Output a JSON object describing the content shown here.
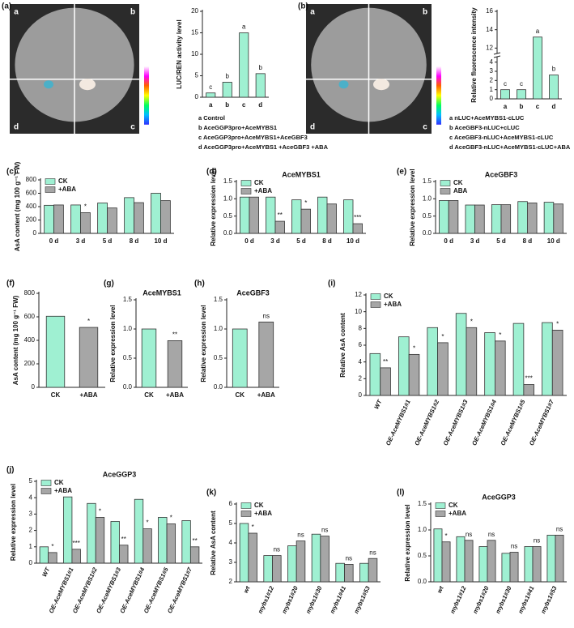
{
  "chart_data": [
    {
      "type": "image",
      "panel": "(a)",
      "quadrants": [
        "a",
        "b",
        "d",
        "c"
      ]
    },
    {
      "type": "bar",
      "ylabel": "LUC/REN activity level",
      "categories": [
        "a",
        "b",
        "c",
        "d"
      ],
      "values": [
        1,
        3.5,
        15,
        5.5
      ],
      "colors": [
        "#9ff0d2",
        "#9ff0d2",
        "#9ff0d2",
        "#9ff0d2"
      ],
      "sig": [
        "c",
        "b",
        "a",
        "b"
      ],
      "ylim": [
        0,
        20
      ],
      "yticks": [
        0,
        5,
        10,
        15,
        20
      ],
      "key": [
        "a  Control",
        "b  AceGGP3pro+AceMYBS1",
        "c  AceGGP3pro+AceMYBS1+AceGBF3",
        "d  AceGGP3pro+AceMYBS1 +AceGBF3 +ABA"
      ]
    },
    {
      "type": "image",
      "panel": "(b)",
      "quadrants": [
        "a",
        "b",
        "d",
        "c"
      ]
    },
    {
      "type": "bar",
      "ylabel": "Relative fluorescence intensity",
      "categories": [
        "a",
        "b",
        "c",
        "d"
      ],
      "values": [
        1,
        1,
        13.2,
        2.6
      ],
      "colors": [
        "#9ff0d2",
        "#9ff0d2",
        "#9ff0d2",
        "#9ff0d2"
      ],
      "sig": [
        "c",
        "c",
        "a",
        "b"
      ],
      "ylim": [
        0,
        16
      ],
      "ybreak": [
        4.5,
        11.5
      ],
      "yticks": [
        0,
        1,
        2,
        3,
        4,
        12,
        14,
        16
      ],
      "key": [
        "a  nLUC+AceMYBS1-cLUC",
        "b  AceGBF3-nLUC+cLUC",
        "c  AceGBF3-nLUC+AceMYBS1-cLUC",
        "d  AceGBF3-nLUC+AceMYBS1-cLUC+ABA"
      ]
    },
    {
      "type": "bar",
      "panel": "(c)",
      "ylabel": "AsA content (mg 100 g⁻¹ FW)",
      "categories": [
        "0 d",
        "3 d",
        "5 d",
        "8 d",
        "10 d"
      ],
      "legend": "upper left",
      "series": [
        {
          "name": "CK",
          "color": "#9ff0d2",
          "values": [
            420,
            425,
            455,
            535,
            600
          ],
          "sig": [
            null,
            null,
            null,
            null,
            null
          ]
        },
        {
          "name": "+ABA",
          "color": "#a6a6a6",
          "values": [
            425,
            310,
            380,
            460,
            490
          ],
          "sig": [
            null,
            "*",
            null,
            null,
            null
          ]
        }
      ],
      "ylim": [
        0,
        800
      ],
      "yticks": [
        0,
        200,
        400,
        600,
        800
      ]
    },
    {
      "type": "bar",
      "panel": "(d)",
      "title": "AceMYBS1",
      "ylabel": "Relative expression level",
      "categories": [
        "0 d",
        "3 d",
        "5 d",
        "8 d",
        "10 d"
      ],
      "legend": "upper left",
      "series": [
        {
          "name": "CK",
          "color": "#9ff0d2",
          "values": [
            1.05,
            1.05,
            0.97,
            1.05,
            0.97
          ],
          "sig": [
            null,
            null,
            null,
            null,
            null
          ]
        },
        {
          "name": "+ABA",
          "color": "#a6a6a6",
          "values": [
            1.05,
            0.35,
            0.7,
            0.85,
            0.28
          ],
          "sig": [
            null,
            "**",
            "*",
            null,
            "***"
          ]
        }
      ],
      "ylim": [
        0,
        1.5
      ],
      "yticks": [
        {
          "value": 0,
          "label": "0.0"
        },
        {
          "value": 0.5,
          "label": "0.5"
        },
        {
          "value": 1,
          "label": "1.0"
        },
        {
          "value": 1.5,
          "label": "1.5"
        }
      ]
    },
    {
      "type": "bar",
      "panel": "(e)",
      "title": "AceGBF3",
      "ylabel": "Relative expression level",
      "categories": [
        "0 d",
        "3 d",
        "5 d",
        "8 d",
        "10 d"
      ],
      "legend": "upper left",
      "series": [
        {
          "name": "CK",
          "color": "#9ff0d2",
          "values": [
            0.95,
            0.82,
            0.83,
            0.92,
            0.9
          ],
          "sig": [
            null,
            null,
            null,
            null,
            null
          ]
        },
        {
          "name": "ABA",
          "color": "#a6a6a6",
          "values": [
            0.95,
            0.82,
            0.83,
            0.88,
            0.85
          ],
          "sig": [
            null,
            null,
            null,
            null,
            null
          ]
        }
      ],
      "ylim": [
        0,
        1.5
      ],
      "yticks": [
        {
          "value": 0,
          "label": "0.0"
        },
        {
          "value": 0.5,
          "label": "0.5"
        },
        {
          "value": 1,
          "label": "1.0"
        },
        {
          "value": 1.5,
          "label": "1.5"
        }
      ]
    },
    {
      "type": "bar",
      "panel": "(f)",
      "ylabel": "AsA content (mg 100 g⁻¹ FW)",
      "categories": [
        "CK",
        "+ABA"
      ],
      "values": [
        605,
        510
      ],
      "colors": [
        "#9ff0d2",
        "#a6a6a6"
      ],
      "sig": [
        null,
        "*"
      ],
      "ylim": [
        0,
        800
      ],
      "yticks": [
        0,
        200,
        400,
        600,
        800
      ]
    },
    {
      "type": "bar",
      "panel": "(g)",
      "title": "AceMYBS1",
      "ylabel": "Relative expression level",
      "categories": [
        "CK",
        "+ABA"
      ],
      "values": [
        1.0,
        0.8
      ],
      "colors": [
        "#9ff0d2",
        "#a6a6a6"
      ],
      "sig": [
        null,
        "**"
      ],
      "ylim": [
        0,
        1.5
      ],
      "yticks": [
        {
          "value": 0,
          "label": "0.0"
        },
        {
          "value": 0.5,
          "label": "0.5"
        },
        {
          "value": 1,
          "label": "1.0"
        },
        {
          "value": 1.5,
          "label": "1.5"
        }
      ]
    },
    {
      "type": "bar",
      "panel": "(h)",
      "title": "AceGBF3",
      "ylabel": "Relative expression level",
      "categories": [
        "CK",
        "+ABA"
      ],
      "values": [
        1.0,
        1.12
      ],
      "colors": [
        "#9ff0d2",
        "#a6a6a6"
      ],
      "sig": [
        null,
        "ns"
      ],
      "ylim": [
        0,
        1.5
      ],
      "yticks": [
        {
          "value": 0,
          "label": "0.0"
        },
        {
          "value": 0.5,
          "label": "0.5"
        },
        {
          "value": 1,
          "label": "1.0"
        },
        {
          "value": 1.5,
          "label": "1.5"
        }
      ]
    },
    {
      "type": "bar",
      "panel": "(i)",
      "ylabel": "Relative AsA content",
      "rotate_labels": true,
      "legend": "upper left",
      "categories": [
        "WT",
        "OE-AceMYBS1#1",
        "OE-AceMYBS1#2",
        "OE-AceMYBS1#3",
        "OE-AceMYBS1#4",
        "OE-AceMYBS1#5",
        "OE-AceMYBS1#7"
      ],
      "series": [
        {
          "name": "CK",
          "color": "#9ff0d2",
          "values": [
            5,
            7,
            8.1,
            9.8,
            7.5,
            8.6,
            8.7
          ],
          "sig": [
            null,
            null,
            null,
            null,
            null,
            null,
            null
          ]
        },
        {
          "name": "+ABA",
          "color": "#a6a6a6",
          "values": [
            3.3,
            4.9,
            6.3,
            8.1,
            6.5,
            1.3,
            7.8
          ],
          "sig": [
            "**",
            "*",
            "*",
            "*",
            "*",
            "***",
            "*"
          ]
        }
      ],
      "ylim": [
        0,
        12
      ],
      "yticks": [
        0,
        2,
        4,
        6,
        8,
        10,
        12
      ]
    },
    {
      "type": "bar",
      "panel": "(j)",
      "title": "AceGGP3",
      "ylabel": "Relative expression level",
      "rotate_labels": true,
      "legend": "upper left",
      "categories": [
        "WT",
        "OE-AceMYBS1#1",
        "OE-AceMYBS1#2",
        "OE-AceMYBS1#3",
        "OE-AceMYBS1#4",
        "OE-AceMYBS1#5",
        "OE-AceMYBS1#7"
      ],
      "series": [
        {
          "name": "CK",
          "color": "#9ff0d2",
          "values": [
            1,
            4.05,
            3.65,
            2.55,
            3.9,
            2.8,
            2.6
          ],
          "sig": [
            null,
            null,
            null,
            null,
            null,
            null,
            null
          ]
        },
        {
          "name": "+ABA",
          "color": "#a6a6a6",
          "values": [
            0.65,
            0.85,
            2.8,
            1.1,
            2.1,
            2.4,
            1.0
          ],
          "sig": [
            "*",
            "***",
            "*",
            "**",
            "*",
            "*",
            "**"
          ]
        }
      ],
      "ylim": [
        0,
        5
      ],
      "yticks": [
        0,
        1,
        2,
        3,
        4,
        5
      ]
    },
    {
      "type": "bar",
      "panel": "(k)",
      "ylabel": "Relative AsA content",
      "rotate_labels": true,
      "legend": "upper left",
      "categories": [
        "wt",
        "mybs1#12",
        "mybs1#20",
        "mybs1#30",
        "mybs1#41",
        "mybs1#53"
      ],
      "series": [
        {
          "name": "CK",
          "color": "#9ff0d2",
          "values": [
            5,
            3.35,
            3.85,
            4.45,
            2.95,
            2.95
          ],
          "sig": [
            null,
            null,
            null,
            null,
            null,
            null
          ]
        },
        {
          "name": "+ABA",
          "color": "#a6a6a6",
          "values": [
            4.5,
            3.35,
            4.1,
            4.35,
            2.9,
            3.2
          ],
          "sig": [
            "*",
            "ns",
            "ns",
            "ns",
            "ns",
            "ns"
          ]
        }
      ],
      "ylim": [
        2,
        6
      ],
      "yticks": [
        2,
        3,
        4,
        5,
        6
      ]
    },
    {
      "type": "bar",
      "panel": "(l)",
      "title": "AceGGP3",
      "ylabel": "Relative expression level",
      "rotate_labels": true,
      "legend": "upper left",
      "categories": [
        "wt",
        "mybs1#12",
        "mybs1#20",
        "mybs1#30",
        "mybs1#41",
        "mybs1#53"
      ],
      "series": [
        {
          "name": "CK",
          "color": "#9ff0d2",
          "values": [
            1.02,
            0.87,
            0.68,
            0.55,
            0.68,
            0.9
          ],
          "sig": [
            null,
            null,
            null,
            null,
            null,
            null
          ]
        },
        {
          "name": "+ABA",
          "color": "#a6a6a6",
          "values": [
            0.77,
            0.8,
            0.8,
            0.57,
            0.68,
            0.9
          ],
          "sig": [
            "*",
            "ns",
            "ns",
            "ns",
            "ns",
            "ns"
          ]
        }
      ],
      "ylim": [
        0,
        1.5
      ],
      "yticks": [
        {
          "value": 0,
          "label": "0.0"
        },
        {
          "value": 0.5,
          "label": "0.5"
        },
        {
          "value": 1,
          "label": "1.0"
        },
        {
          "value": 1.5,
          "label": "1.5"
        }
      ]
    }
  ]
}
